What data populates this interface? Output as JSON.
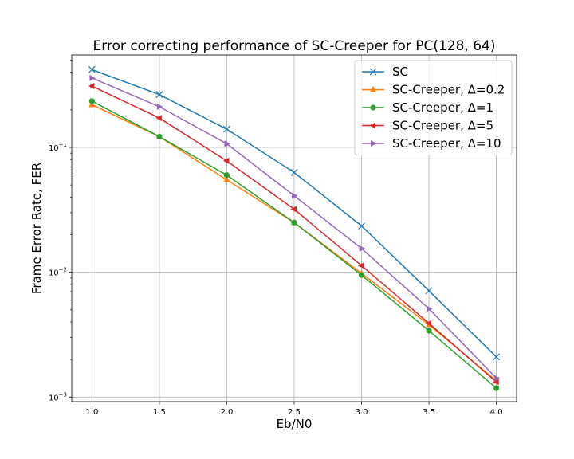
{
  "chart_data": {
    "type": "line",
    "title": "Error correcting performance of SC-Creeper for PC(128, 64)",
    "xlabel": "Eb/N0",
    "ylabel": "Frame Error Rate, FER",
    "x": [
      1.0,
      1.5,
      2.0,
      2.5,
      3.0,
      3.5,
      4.0
    ],
    "xlim": [
      0.85,
      4.15
    ],
    "ylim": [
      0.00092,
      0.55
    ],
    "yscale": "log",
    "grid": true,
    "legend_position": "top-right",
    "x_ticks": [
      "1.0",
      "1.5",
      "2.0",
      "2.5",
      "3.0",
      "3.5",
      "4.0"
    ],
    "y_ticks": [
      {
        "value": 0.1,
        "base": "10",
        "exp": "−1"
      },
      {
        "value": 0.01,
        "base": "10",
        "exp": "−2"
      },
      {
        "value": 0.001,
        "base": "10",
        "exp": "−3"
      }
    ],
    "series": [
      {
        "name": "SC",
        "color": "#1f77b4",
        "marker": "x",
        "values": [
          0.42,
          0.265,
          0.14,
          0.063,
          0.0235,
          0.0071,
          0.0021
        ]
      },
      {
        "name": "SC-Creeper, Δ=0.2",
        "color": "#ff7f0e",
        "marker": "triangle-up",
        "values": [
          0.22,
          0.122,
          0.055,
          0.025,
          0.0098,
          0.0038,
          0.00135
        ]
      },
      {
        "name": "SC-Creeper, Δ=1",
        "color": "#2ca02c",
        "marker": "circle",
        "values": [
          0.235,
          0.122,
          0.06,
          0.025,
          0.0095,
          0.0034,
          0.00118
        ]
      },
      {
        "name": "SC-Creeper, Δ=5",
        "color": "#d62728",
        "marker": "triangle-left",
        "values": [
          0.31,
          0.172,
          0.078,
          0.032,
          0.0113,
          0.0039,
          0.00132
        ]
      },
      {
        "name": "SC-Creeper, Δ=10",
        "color": "#9467bd",
        "marker": "triangle-right",
        "values": [
          0.36,
          0.212,
          0.107,
          0.041,
          0.0155,
          0.0051,
          0.00142
        ]
      }
    ]
  }
}
